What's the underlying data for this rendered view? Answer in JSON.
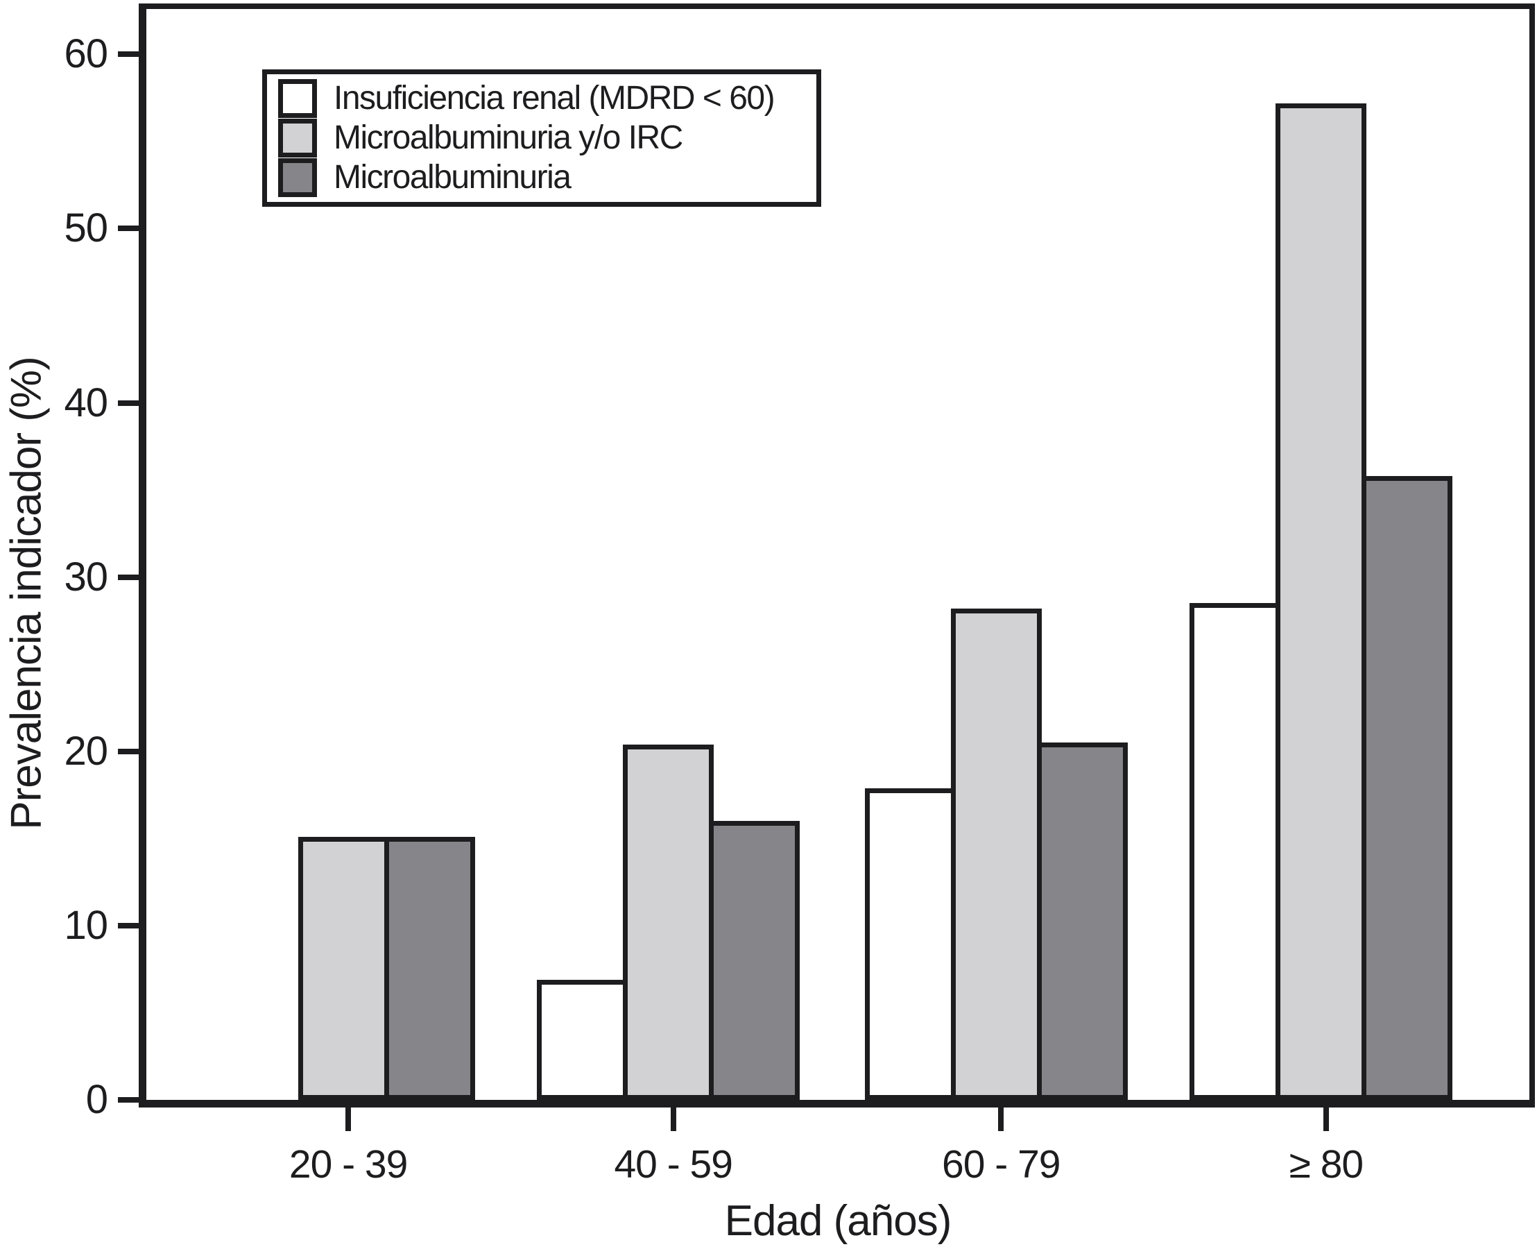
{
  "figure": {
    "background": "#ffffff",
    "ink": "#1d1d1f"
  },
  "chart_data": {
    "type": "bar",
    "title": "",
    "categories": [
      "20 - 39",
      "40 - 59",
      "60 - 79",
      "≥ 80"
    ],
    "series": [
      {
        "name": "Insuficiencia renal (MDRD < 60)",
        "color": "#ffffff",
        "values": [
          0,
          6.9,
          17.9,
          28.5
        ]
      },
      {
        "name": "Microalbuminuria y/o IRC",
        "color": "#d2d2d4",
        "values": [
          15.1,
          20.4,
          28.2,
          57.2
        ]
      },
      {
        "name": "Microalbuminuria",
        "color": "#86868a",
        "values": [
          15.1,
          16.0,
          20.5,
          35.8
        ]
      }
    ],
    "xlabel": "Edad (años)",
    "ylabel": "Prevalencia indicador (%)",
    "ylim": [
      0,
      60
    ],
    "yticks": [
      0,
      10,
      20,
      30,
      40,
      50,
      60
    ],
    "grid": false,
    "legend_position": "upper-left-inside",
    "bar_border_color": "#1d1d1f"
  }
}
